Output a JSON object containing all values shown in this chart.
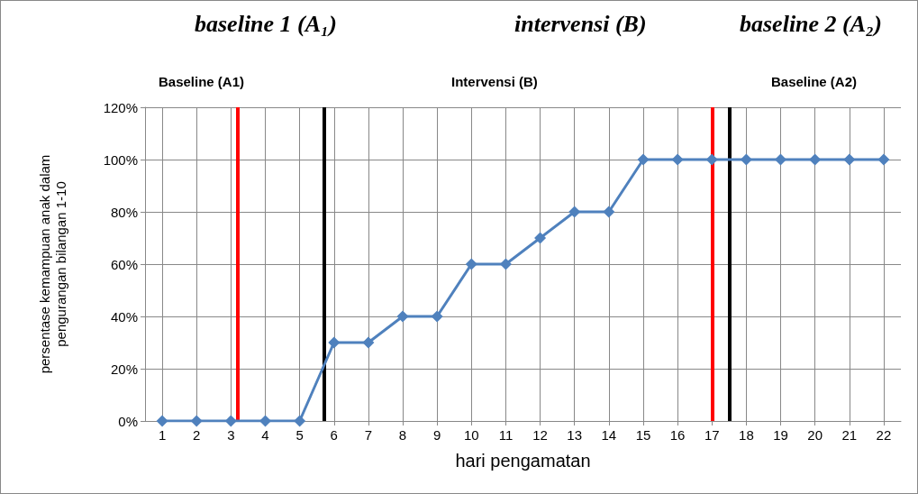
{
  "chart_data": {
    "type": "line",
    "xlabel": "hari pengamatan",
    "ylabel": "persentase kemampuan anak dalam\npengurangan bilangan 1-10",
    "x": [
      1,
      2,
      3,
      4,
      5,
      6,
      7,
      8,
      9,
      10,
      11,
      12,
      13,
      14,
      15,
      16,
      17,
      18,
      19,
      20,
      21,
      22
    ],
    "series": [
      {
        "color": "#4f81bd",
        "values": [
          0,
          0,
          0,
          0,
          0,
          30,
          30,
          40,
          40,
          60,
          60,
          70,
          80,
          80,
          100,
          100,
          100,
          100,
          100,
          100,
          100,
          100
        ]
      }
    ],
    "xlim": [
      0.5,
      22.5
    ],
    "xticks": [
      1,
      2,
      3,
      4,
      5,
      6,
      7,
      8,
      9,
      10,
      11,
      12,
      13,
      14,
      15,
      16,
      17,
      18,
      19,
      20,
      21,
      22
    ],
    "ylim": [
      0,
      120
    ],
    "yticks": [
      {
        "value": 0,
        "label": "0%"
      },
      {
        "value": 20,
        "label": "20%"
      },
      {
        "value": 40,
        "label": "40%"
      },
      {
        "value": 60,
        "label": "60%"
      },
      {
        "value": 80,
        "label": "80%"
      },
      {
        "value": 100,
        "label": "100%"
      },
      {
        "value": 120,
        "label": "120%"
      }
    ],
    "ref_lines": [
      {
        "axis": "x",
        "value": 3.2,
        "color": "#ff0000"
      },
      {
        "axis": "x",
        "value": 5.7,
        "color": "#000000"
      },
      {
        "axis": "x",
        "value": 17,
        "color": "#ff0000"
      },
      {
        "axis": "x",
        "value": 17.5,
        "color": "#000000"
      }
    ],
    "annotations": [
      "baseline 1 (A₁)",
      "Baseline (A1)",
      "intervensi (B)",
      "Intervensi (B)",
      "baseline 2 (A₂)",
      "Baseline (A2)"
    ],
    "grid": true,
    "marker": "diamond",
    "line_style": "solid"
  }
}
